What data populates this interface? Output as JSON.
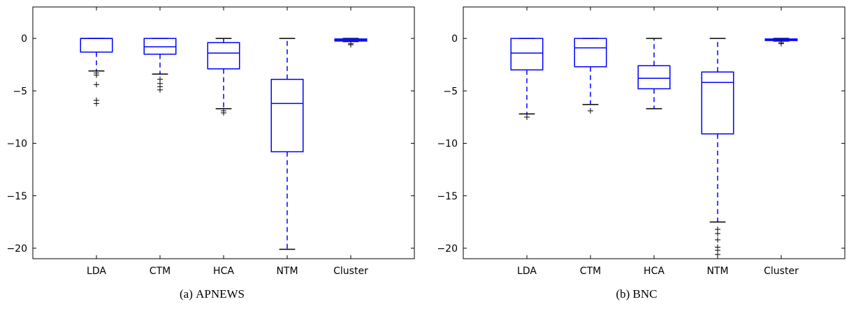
{
  "chart_data": [
    {
      "type": "box",
      "caption_prefix": "(a)",
      "caption_name": "APNEWS",
      "categories": [
        "LDA",
        "CTM",
        "HCA",
        "NTM",
        "Cluster"
      ],
      "ylim": [
        -21,
        3
      ],
      "yticks": [
        0,
        -5,
        -10,
        -15,
        -20
      ],
      "ytick_labels": [
        "0",
        "−5",
        "−10",
        "−15",
        "−20"
      ],
      "boxes": [
        {
          "label": "LDA",
          "whisker_low": -3.1,
          "q1": -1.3,
          "median": 0.0,
          "q3": 0.0,
          "whisker_high": 0.0,
          "outliers": [
            -3.3,
            -3.5,
            -4.4,
            -5.9,
            -6.2
          ]
        },
        {
          "label": "CTM",
          "whisker_low": -3.4,
          "q1": -1.5,
          "median": -0.8,
          "q3": 0.0,
          "whisker_high": 0.0,
          "outliers": [
            -3.9,
            -4.3,
            -4.6,
            -4.9
          ]
        },
        {
          "label": "HCA",
          "whisker_low": -6.7,
          "q1": -2.9,
          "median": -1.4,
          "q3": -0.4,
          "whisker_high": 0.0,
          "outliers": [
            -6.9,
            -7.1
          ]
        },
        {
          "label": "NTM",
          "whisker_low": -20.1,
          "q1": -10.8,
          "median": -6.2,
          "q3": -3.9,
          "whisker_high": 0.0,
          "outliers": []
        },
        {
          "label": "Cluster",
          "whisker_low": -0.3,
          "q1": -0.25,
          "median": -0.15,
          "q3": -0.05,
          "whisker_high": 0.0,
          "outliers": [
            -0.5,
            -0.6
          ]
        }
      ]
    },
    {
      "type": "box",
      "caption_prefix": "(b)",
      "caption_name": "BNC",
      "categories": [
        "LDA",
        "CTM",
        "HCA",
        "NTM",
        "Cluster"
      ],
      "ylim": [
        -21,
        3
      ],
      "yticks": [
        0,
        -5,
        -10,
        -15,
        -20
      ],
      "ytick_labels": [
        "0",
        "−5",
        "−10",
        "−15",
        "−20"
      ],
      "boxes": [
        {
          "label": "LDA",
          "whisker_low": -7.2,
          "q1": -3.0,
          "median": -1.4,
          "q3": 0.0,
          "whisker_high": 0.0,
          "outliers": [
            -7.5
          ]
        },
        {
          "label": "CTM",
          "whisker_low": -6.3,
          "q1": -2.7,
          "median": -0.9,
          "q3": 0.0,
          "whisker_high": 0.0,
          "outliers": [
            -6.9
          ]
        },
        {
          "label": "HCA",
          "whisker_low": -6.7,
          "q1": -4.8,
          "median": -3.8,
          "q3": -2.6,
          "whisker_high": 0.0,
          "outliers": []
        },
        {
          "label": "NTM",
          "whisker_low": -17.5,
          "q1": -9.1,
          "median": -4.2,
          "q3": -3.2,
          "whisker_high": 0.0,
          "outliers": [
            -18.2,
            -18.6,
            -19.2,
            -19.9,
            -20.2,
            -20.6
          ]
        },
        {
          "label": "Cluster",
          "whisker_low": -0.25,
          "q1": -0.2,
          "median": -0.1,
          "q3": -0.05,
          "whisker_high": 0.0,
          "outliers": [
            -0.4,
            -0.5
          ]
        }
      ]
    }
  ],
  "style": {
    "box_color": "#0000ff",
    "flier_color": "#000000",
    "cap_color": "#000000"
  }
}
